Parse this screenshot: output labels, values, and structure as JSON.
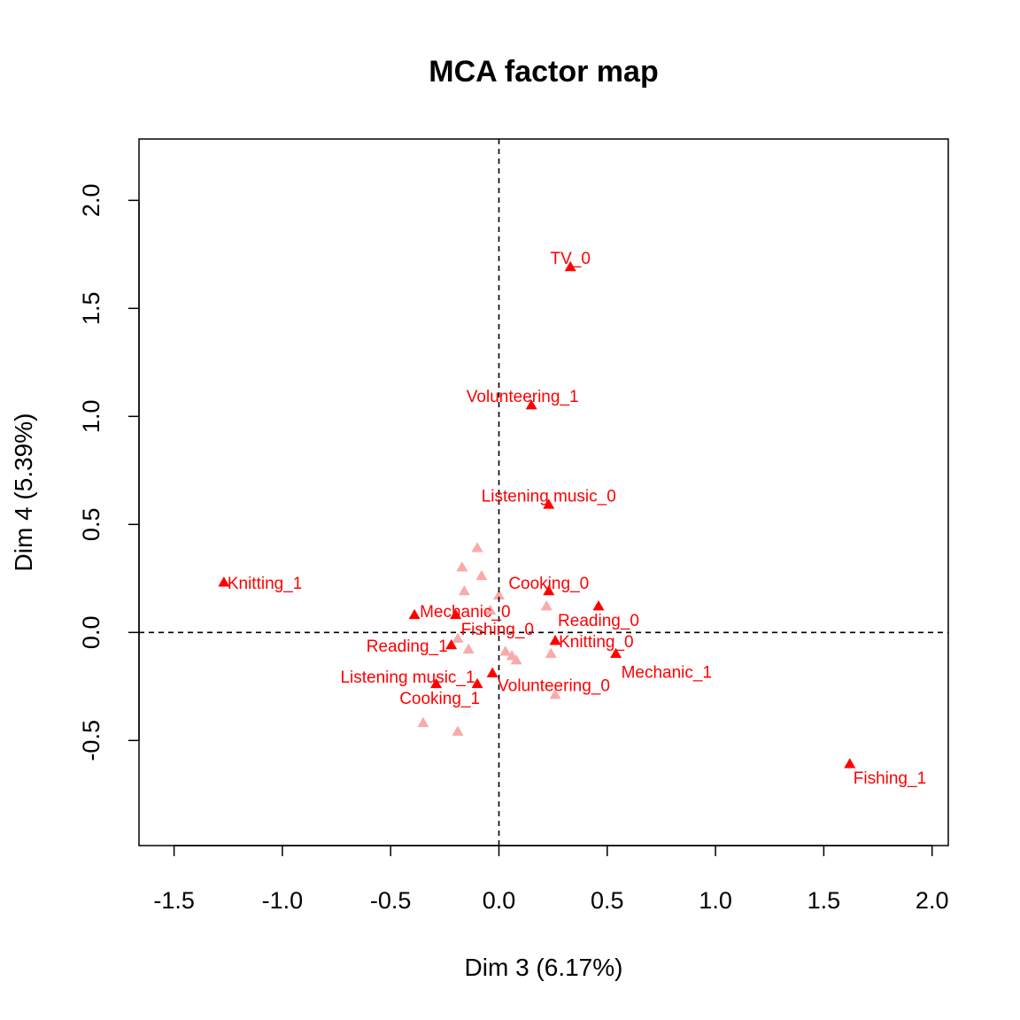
{
  "chart_data": {
    "type": "scatter",
    "title": "MCA factor map",
    "xlabel": "Dim 3 (6.17%)",
    "ylabel": "Dim 4 (5.39%)",
    "xlim": [
      -1.5,
      2.0
    ],
    "ylim": [
      -0.75,
      2.2
    ],
    "xticks": [
      "-1.5",
      "-1.0",
      "-0.5",
      "0.0",
      "0.5",
      "1.0",
      "1.5",
      "2.0"
    ],
    "yticks": [
      "-0.5",
      "0.0",
      "0.5",
      "1.0",
      "1.5",
      "2.0"
    ],
    "reference_lines": {
      "x": 0,
      "y": 0,
      "style": "dashed"
    },
    "grid": false,
    "colors": {
      "labeled": "#ff0000",
      "faded": "#f9aaaa"
    },
    "labeled_points": [
      {
        "label": "TV_0",
        "x": 0.33,
        "y": 1.69
      },
      {
        "label": "Volunteering_1",
        "x": 0.15,
        "y": 1.05
      },
      {
        "label": "Listening music_0",
        "x": 0.23,
        "y": 0.59
      },
      {
        "label": "Knitting_1",
        "x": -1.27,
        "y": 0.23
      },
      {
        "label": "Cooking_0",
        "x": 0.23,
        "y": 0.19
      },
      {
        "label": "Mechanic_0",
        "x": -0.39,
        "y": 0.08
      },
      {
        "label": "Reading_0",
        "x": 0.46,
        "y": 0.12
      },
      {
        "label": "Fishing_0",
        "x": -0.2,
        "y": 0.08
      },
      {
        "label": "Knitting_0",
        "x": 0.26,
        "y": -0.04
      },
      {
        "label": "Reading_1",
        "x": -0.22,
        "y": -0.06
      },
      {
        "label": "Mechanic_1",
        "x": 0.54,
        "y": -0.1
      },
      {
        "label": "Listening music_1",
        "x": -0.29,
        "y": -0.24
      },
      {
        "label": "Volunteering_0",
        "x": -0.03,
        "y": -0.19
      },
      {
        "label": "Cooking_1",
        "x": -0.1,
        "y": -0.24
      },
      {
        "label": "Fishing_1",
        "x": 1.62,
        "y": -0.61
      }
    ],
    "faded_points": [
      {
        "x": -0.1,
        "y": 0.39
      },
      {
        "x": -0.17,
        "y": 0.3
      },
      {
        "x": -0.08,
        "y": 0.26
      },
      {
        "x": -0.16,
        "y": 0.19
      },
      {
        "x": 0.0,
        "y": 0.17
      },
      {
        "x": -0.04,
        "y": 0.1
      },
      {
        "x": 0.22,
        "y": 0.12
      },
      {
        "x": -0.19,
        "y": -0.03
      },
      {
        "x": -0.14,
        "y": -0.08
      },
      {
        "x": 0.03,
        "y": -0.09
      },
      {
        "x": 0.06,
        "y": -0.11
      },
      {
        "x": 0.08,
        "y": -0.13
      },
      {
        "x": 0.24,
        "y": -0.1
      },
      {
        "x": 0.26,
        "y": -0.29
      },
      {
        "x": -0.35,
        "y": -0.42
      },
      {
        "x": -0.19,
        "y": -0.46
      }
    ]
  }
}
